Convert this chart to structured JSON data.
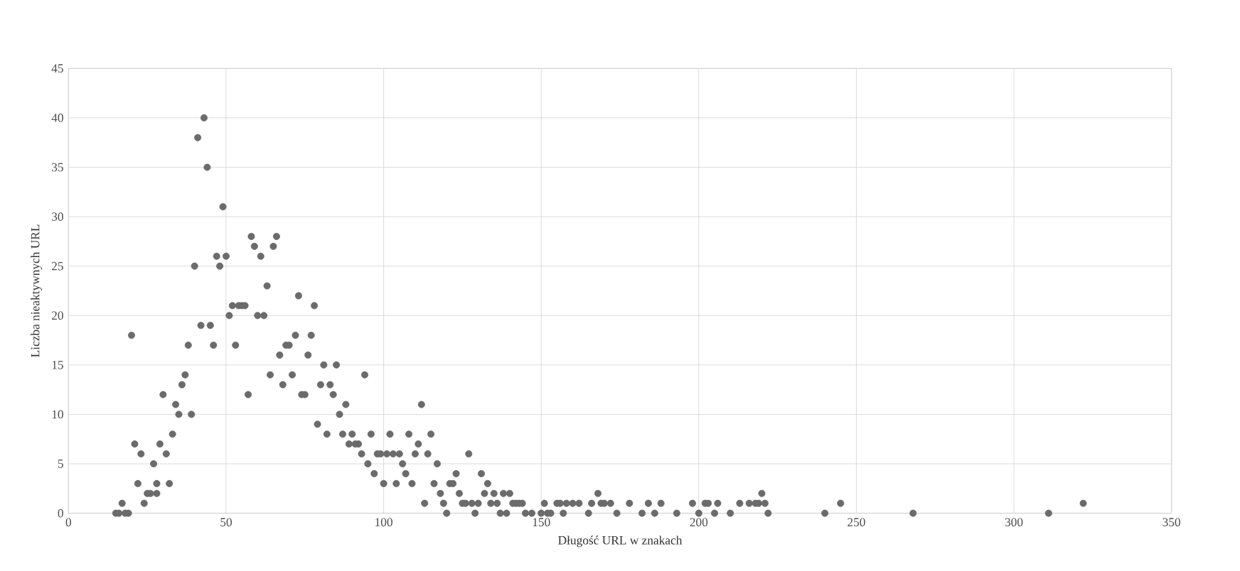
{
  "chart_data": {
    "type": "scatter",
    "xlabel": "Długość URL w znakach",
    "ylabel": "Liczba nieaktywnych URL",
    "marker": "circle",
    "grid": true,
    "xlim": [
      0,
      350
    ],
    "xticks": [
      0,
      50,
      100,
      150,
      200,
      250,
      300,
      350
    ],
    "ylim": [
      0,
      45
    ],
    "yticks": [
      0,
      5,
      10,
      15,
      20,
      25,
      30,
      35,
      40,
      45
    ],
    "series": [
      {
        "color": "#6b6b6b",
        "x": [
          15,
          16,
          17,
          18,
          19,
          20,
          21,
          22,
          23,
          24,
          25,
          26,
          27,
          28,
          28,
          29,
          30,
          31,
          32,
          33,
          34,
          35,
          36,
          37,
          38,
          39,
          40,
          41,
          42,
          43,
          44,
          45,
          46,
          47,
          48,
          49,
          50,
          51,
          52,
          53,
          54,
          55,
          56,
          57,
          58,
          59,
          60,
          61,
          62,
          63,
          64,
          65,
          66,
          67,
          68,
          69,
          70,
          71,
          72,
          73,
          74,
          75,
          76,
          77,
          78,
          79,
          80,
          81,
          82,
          83,
          84,
          85,
          86,
          87,
          88,
          89,
          90,
          91,
          92,
          93,
          94,
          95,
          96,
          97,
          98,
          99,
          100,
          101,
          102,
          103,
          104,
          105,
          106,
          107,
          108,
          109,
          110,
          111,
          112,
          113,
          114,
          115,
          116,
          117,
          118,
          119,
          120,
          121,
          122,
          123,
          124,
          125,
          126,
          127,
          128,
          129,
          130,
          131,
          132,
          133,
          134,
          135,
          136,
          137,
          138,
          139,
          140,
          141,
          142,
          143,
          144,
          145,
          147,
          150,
          151,
          152,
          153,
          155,
          156,
          157,
          158,
          160,
          162,
          165,
          166,
          168,
          169,
          170,
          172,
          174,
          178,
          182,
          184,
          186,
          188,
          193,
          198,
          200,
          202,
          203,
          205,
          206,
          210,
          213,
          216,
          218,
          219,
          220,
          221,
          222,
          240,
          245,
          268,
          311,
          322
        ],
        "values": [
          0,
          0,
          1,
          0,
          0,
          18,
          7,
          3,
          6,
          1,
          2,
          2,
          5,
          3,
          2,
          7,
          12,
          6,
          3,
          8,
          11,
          10,
          13,
          14,
          17,
          10,
          25,
          38,
          19,
          40,
          35,
          19,
          17,
          26,
          25,
          31,
          26,
          20,
          21,
          17,
          21,
          21,
          21,
          12,
          28,
          27,
          20,
          26,
          20,
          23,
          14,
          27,
          28,
          16,
          13,
          17,
          17,
          14,
          18,
          22,
          12,
          12,
          16,
          18,
          21,
          9,
          13,
          15,
          8,
          13,
          12,
          15,
          10,
          8,
          11,
          7,
          8,
          7,
          7,
          6,
          14,
          5,
          8,
          4,
          6,
          6,
          3,
          6,
          8,
          6,
          3,
          6,
          5,
          4,
          8,
          3,
          6,
          7,
          11,
          1,
          6,
          8,
          3,
          5,
          2,
          1,
          0,
          3,
          3,
          4,
          2,
          1,
          1,
          6,
          1,
          0,
          1,
          4,
          2,
          3,
          1,
          2,
          1,
          0,
          2,
          0,
          2,
          1,
          1,
          1,
          1,
          0,
          0,
          0,
          1,
          0,
          0,
          1,
          1,
          0,
          1,
          1,
          1,
          0,
          1,
          2,
          1,
          1,
          1,
          0,
          1,
          0,
          1,
          0,
          1,
          0,
          1,
          0,
          1,
          1,
          0,
          1,
          0,
          1,
          1,
          1,
          1,
          2,
          1,
          0,
          0,
          1,
          0,
          0,
          1
        ]
      }
    ]
  }
}
